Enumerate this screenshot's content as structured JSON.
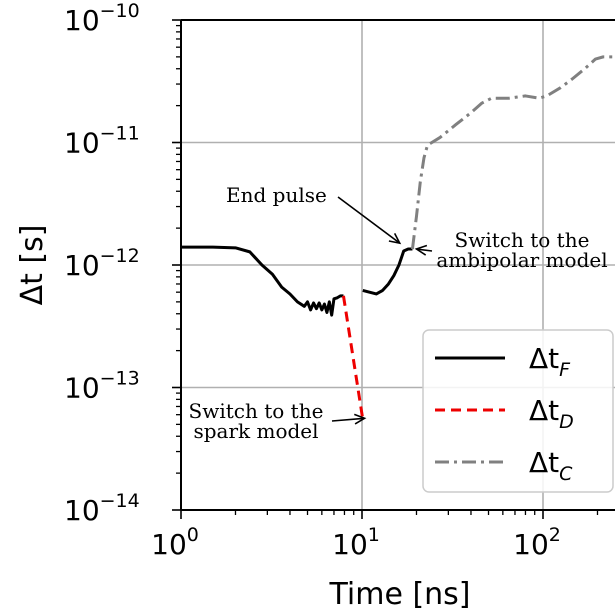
{
  "chart_data": {
    "type": "line",
    "xlabel": "Time [ns]",
    "ylabel": "Δt [s]",
    "xscale": "log",
    "yscale": "log",
    "xlim": [
      1,
      650
    ],
    "ylim": [
      1e-14,
      1e-10
    ],
    "grid": true,
    "legend_position": "lower-right",
    "x_ticks": [
      {
        "value": 1,
        "base": "10",
        "exp": "0"
      },
      {
        "value": 10,
        "base": "10",
        "exp": "1"
      },
      {
        "value": 100,
        "base": "10",
        "exp": "2"
      }
    ],
    "y_ticks": [
      {
        "value": 1e-10,
        "base": "10",
        "exp": "−10"
      },
      {
        "value": 1e-11,
        "base": "10",
        "exp": "−11"
      },
      {
        "value": 1e-12,
        "base": "10",
        "exp": "−12"
      },
      {
        "value": 1e-13,
        "base": "10",
        "exp": "−13"
      },
      {
        "value": 1e-14,
        "base": "10",
        "exp": "−14"
      }
    ],
    "series": [
      {
        "name_base": "Δt",
        "name_sub": "F",
        "color": "#000000",
        "dash": "solid",
        "points": [
          [
            1,
            1.4e-12
          ],
          [
            1.5,
            1.4e-12
          ],
          [
            2.0,
            1.38e-12
          ],
          [
            2.4,
            1.28e-12
          ],
          [
            2.8,
            1e-12
          ],
          [
            3.2,
            8.4e-13
          ],
          [
            3.6,
            6.6e-13
          ],
          [
            4.0,
            5.8e-13
          ],
          [
            4.4,
            5e-13
          ],
          [
            4.8,
            4.6e-13
          ],
          [
            5.0,
            5e-13
          ],
          [
            5.2,
            4.3e-13
          ],
          [
            5.4,
            4.9e-13
          ],
          [
            5.6,
            4.4e-13
          ],
          [
            5.8,
            4.9e-13
          ],
          [
            6.0,
            4.3e-13
          ],
          [
            6.2,
            4.8e-13
          ],
          [
            6.4,
            4.1e-13
          ],
          [
            6.6,
            5e-13
          ],
          [
            6.8,
            3.9e-13
          ],
          [
            7.0,
            5.3e-13
          ],
          [
            7.3,
            5.4e-13
          ],
          [
            7.6,
            5.6e-13
          ],
          [
            7.9,
            5.6e-13
          ],
          [
            null,
            null
          ],
          [
            10.1,
            6.2e-13
          ],
          [
            11.0,
            6e-13
          ],
          [
            12.0,
            5.8e-13
          ],
          [
            13.0,
            6.2e-13
          ],
          [
            14.0,
            7e-13
          ],
          [
            15.0,
            8.2e-13
          ],
          [
            16.0,
            1e-12
          ],
          [
            17.0,
            1.3e-12
          ],
          [
            18.0,
            1.35e-12
          ],
          [
            19.0,
            1.35e-12
          ]
        ]
      },
      {
        "name_base": "Δt",
        "name_sub": "D",
        "color": "#ee0000",
        "dash": "10,6",
        "points": [
          [
            7.9,
            5.6e-13
          ],
          [
            10.1,
            5.5e-14
          ]
        ]
      },
      {
        "name_base": "Δt",
        "name_sub": "C",
        "color": "#808080",
        "dash": "14,5,3,5",
        "points": [
          [
            19.0,
            1.35e-12
          ],
          [
            20.0,
            2.5e-12
          ],
          [
            21.0,
            4.8e-12
          ],
          [
            22.0,
            7.5e-12
          ],
          [
            23.0,
            9.5e-12
          ],
          [
            27.0,
            1.1e-11
          ],
          [
            33.0,
            1.4e-11
          ],
          [
            40.0,
            1.75e-11
          ],
          [
            46.0,
            2.1e-11
          ],
          [
            52.0,
            2.3e-11
          ],
          [
            65.0,
            2.3e-11
          ],
          [
            80.0,
            2.4e-11
          ],
          [
            95.0,
            2.3e-11
          ],
          [
            105.0,
            2.4e-11
          ],
          [
            125.0,
            2.8e-11
          ],
          [
            145.0,
            3.3e-11
          ],
          [
            170.0,
            4e-11
          ],
          [
            195.0,
            4.8e-11
          ],
          [
            215.0,
            5e-11
          ],
          [
            650.0,
            5e-11
          ]
        ]
      }
    ],
    "annotations": [
      {
        "id": "end-pulse",
        "lines": [
          "End pulse"
        ],
        "target": [
          17.0,
          1.4e-12
        ]
      },
      {
        "id": "switch-ambipolar",
        "lines": [
          "Switch to the",
          "ambipolar model"
        ],
        "target": [
          19.0,
          1.35e-12
        ]
      },
      {
        "id": "switch-spark",
        "lines": [
          "Switch to the",
          "spark model"
        ],
        "target": [
          10.2,
          5.5e-14
        ]
      }
    ]
  }
}
